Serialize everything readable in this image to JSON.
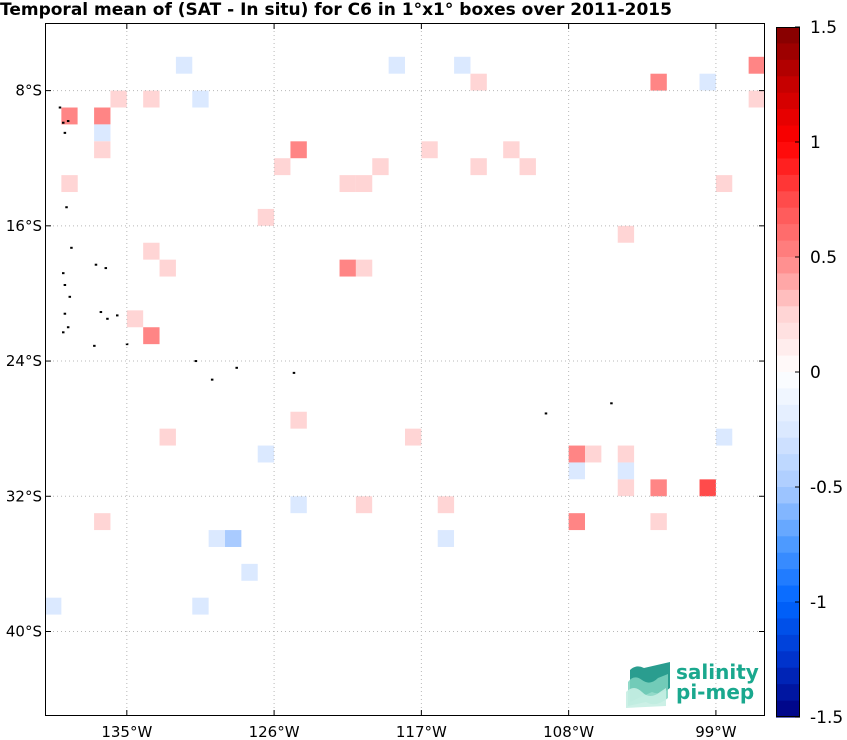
{
  "title": "Temporal mean of (SAT - In situ) for C6 in 1°x1° boxes over 2011-2015",
  "logo": {
    "line1": "salinity",
    "line2": "pi-mep"
  },
  "chart_data": {
    "type": "heatmap",
    "title": "Temporal mean of (SAT - In situ) for C6 in 1°x1° boxes over 2011-2015",
    "xlim": [
      -140,
      -96
    ],
    "ylim": [
      -45,
      -4
    ],
    "x_ticks": [
      -135,
      -126,
      -117,
      -108,
      -99
    ],
    "x_tick_labels": [
      "135°W",
      "126°W",
      "117°W",
      "108°W",
      "99°W"
    ],
    "y_ticks": [
      -8,
      -16,
      -24,
      -32,
      -40
    ],
    "y_tick_labels": [
      "8°S",
      "16°S",
      "24°S",
      "32°S",
      "40°S"
    ],
    "grid": true,
    "colorbar": {
      "range": [
        -1.5,
        1.5
      ],
      "ticks": [
        1.5,
        1,
        0.5,
        0,
        -0.5,
        -1,
        -1.5
      ],
      "tick_labels": [
        "1.5",
        "1",
        "0.5",
        "0",
        "-0.5",
        "-1",
        "-1.5"
      ],
      "colors": [
        "#7f0000",
        "#c60000",
        "#ff0000",
        "#ff4b4b",
        "#ff8585",
        "#ffd5d5",
        "#ffffff",
        "#dbe9ff",
        "#a9cbff",
        "#4d9aff",
        "#0066ff",
        "#0033cc",
        "#000080"
      ]
    },
    "cells": [
      {
        "lon": -121.5,
        "lat": -5.5,
        "value": -0.1
      },
      {
        "lon": -131.5,
        "lat": -6.5,
        "value": -0.15
      },
      {
        "lon": -118.5,
        "lat": -6.5,
        "value": -0.15
      },
      {
        "lon": -114.5,
        "lat": -6.5,
        "value": -0.15
      },
      {
        "lon": -97.5,
        "lat": -5.5,
        "value": -0.1
      },
      {
        "lon": -97.5,
        "lat": -6.5,
        "value": -0.1
      },
      {
        "lon": -96.5,
        "lat": -6.5,
        "value": 0.6
      },
      {
        "lon": -113.5,
        "lat": -7.5,
        "value": 0.3
      },
      {
        "lon": -102.5,
        "lat": -7.5,
        "value": 0.45
      },
      {
        "lon": -99.5,
        "lat": -7.5,
        "value": -0.3
      },
      {
        "lon": -136.5,
        "lat": -8.5,
        "value": -0.1
      },
      {
        "lon": -135.5,
        "lat": -8.5,
        "value": 0.2
      },
      {
        "lon": -133.5,
        "lat": -8.5,
        "value": 0.2
      },
      {
        "lon": -130.5,
        "lat": -8.5,
        "value": -0.15
      },
      {
        "lon": -124.5,
        "lat": -8.5,
        "value": -0.1
      },
      {
        "lon": -110.5,
        "lat": -8.5,
        "value": -0.1
      },
      {
        "lon": -99.5,
        "lat": -8.5,
        "value": -0.1
      },
      {
        "lon": -96.5,
        "lat": -8.5,
        "value": 0.2
      },
      {
        "lon": -138.5,
        "lat": -9.5,
        "value": 0.55
      },
      {
        "lon": -137.5,
        "lat": -9.5,
        "value": -0.1
      },
      {
        "lon": -136.5,
        "lat": -9.5,
        "value": 0.4
      },
      {
        "lon": -136.5,
        "lat": -10.5,
        "value": -0.15
      },
      {
        "lon": -136.5,
        "lat": -11.5,
        "value": 0.2
      },
      {
        "lon": -124.5,
        "lat": -11.5,
        "value": 0.4
      },
      {
        "lon": -116.5,
        "lat": -11.5,
        "value": 0.25
      },
      {
        "lon": -111.5,
        "lat": -11.5,
        "value": 0.25
      },
      {
        "lon": -125.5,
        "lat": -12.5,
        "value": 0.2
      },
      {
        "lon": -119.5,
        "lat": -12.5,
        "value": 0.2
      },
      {
        "lon": -113.5,
        "lat": -12.5,
        "value": 0.35
      },
      {
        "lon": -110.5,
        "lat": -12.5,
        "value": 0.2
      },
      {
        "lon": -138.5,
        "lat": -13.5,
        "value": 0.2
      },
      {
        "lon": -121.5,
        "lat": -13.5,
        "value": 0.2
      },
      {
        "lon": -120.5,
        "lat": -13.5,
        "value": 0.3
      },
      {
        "lon": -98.5,
        "lat": -13.5,
        "value": 0.2
      },
      {
        "lon": -126.5,
        "lat": -15.5,
        "value": 0.25
      },
      {
        "lon": -104.5,
        "lat": -16.5,
        "value": 0.2
      },
      {
        "lon": -133.5,
        "lat": -17.5,
        "value": 0.25
      },
      {
        "lon": -132.5,
        "lat": -18.5,
        "value": 0.25
      },
      {
        "lon": -121.5,
        "lat": -18.5,
        "value": 0.45
      },
      {
        "lon": -120.5,
        "lat": -18.5,
        "value": 0.25
      },
      {
        "lon": -134.5,
        "lat": -21.5,
        "value": 0.2
      },
      {
        "lon": -133.5,
        "lat": -22.5,
        "value": 0.4
      },
      {
        "lon": -124.5,
        "lat": -27.5,
        "value": 0.2
      },
      {
        "lon": -132.5,
        "lat": -28.5,
        "value": 0.25
      },
      {
        "lon": -117.5,
        "lat": -28.5,
        "value": 0.25
      },
      {
        "lon": -98.5,
        "lat": -28.5,
        "value": -0.15
      },
      {
        "lon": -126.5,
        "lat": -29.5,
        "value": -0.15
      },
      {
        "lon": -107.5,
        "lat": -29.5,
        "value": 0.45
      },
      {
        "lon": -106.5,
        "lat": -29.5,
        "value": 0.2
      },
      {
        "lon": -104.5,
        "lat": -29.5,
        "value": 0.2
      },
      {
        "lon": -107.5,
        "lat": -30.5,
        "value": -0.2
      },
      {
        "lon": -104.5,
        "lat": -30.5,
        "value": -0.2
      },
      {
        "lon": -112.5,
        "lat": -31.5,
        "value": -0.1
      },
      {
        "lon": -107.5,
        "lat": -31.5,
        "value": -0.1
      },
      {
        "lon": -106.5,
        "lat": -31.5,
        "value": -0.1
      },
      {
        "lon": -104.5,
        "lat": -31.5,
        "value": 0.2
      },
      {
        "lon": -102.5,
        "lat": -31.5,
        "value": 0.45
      },
      {
        "lon": -99.5,
        "lat": -31.5,
        "value": 0.85
      },
      {
        "lon": -124.5,
        "lat": -32.5,
        "value": -0.15
      },
      {
        "lon": -120.5,
        "lat": -32.5,
        "value": 0.2
      },
      {
        "lon": -119.5,
        "lat": -32.5,
        "value": -0.1
      },
      {
        "lon": -115.5,
        "lat": -32.5,
        "value": 0.25
      },
      {
        "lon": -105.5,
        "lat": -32.5,
        "value": -0.1
      },
      {
        "lon": -104.5,
        "lat": -32.5,
        "value": -0.1
      },
      {
        "lon": -103.5,
        "lat": -32.5,
        "value": -0.1
      },
      {
        "lon": -136.5,
        "lat": -33.5,
        "value": 0.2
      },
      {
        "lon": -130.5,
        "lat": -33.5,
        "value": -0.1
      },
      {
        "lon": -118.5,
        "lat": -33.5,
        "value": -0.1
      },
      {
        "lon": -107.5,
        "lat": -33.5,
        "value": 0.4
      },
      {
        "lon": -102.5,
        "lat": -33.5,
        "value": 0.2
      },
      {
        "lon": -129.5,
        "lat": -34.5,
        "value": -0.15
      },
      {
        "lon": -128.5,
        "lat": -34.5,
        "value": -0.4
      },
      {
        "lon": -115.5,
        "lat": -34.5,
        "value": -0.25
      },
      {
        "lon": -114.5,
        "lat": -34.5,
        "value": -0.1
      },
      {
        "lon": -127.5,
        "lat": -36.5,
        "value": -0.15
      },
      {
        "lon": -139.5,
        "lat": -38.5,
        "value": -0.15
      },
      {
        "lon": -130.5,
        "lat": -38.5,
        "value": -0.3
      }
    ],
    "land": [
      {
        "lon": -138.9,
        "lat": -9.9
      },
      {
        "lon": -138.6,
        "lat": -9.8
      },
      {
        "lon": -139.1,
        "lat": -9.0
      },
      {
        "lon": -138.8,
        "lat": -10.5
      },
      {
        "lon": -138.7,
        "lat": -14.9
      },
      {
        "lon": -138.4,
        "lat": -17.3
      },
      {
        "lon": -136.9,
        "lat": -18.3
      },
      {
        "lon": -136.3,
        "lat": -18.5
      },
      {
        "lon": -138.9,
        "lat": -18.8
      },
      {
        "lon": -138.8,
        "lat": -19.5
      },
      {
        "lon": -138.5,
        "lat": -20.2
      },
      {
        "lon": -138.8,
        "lat": -21.2
      },
      {
        "lon": -136.6,
        "lat": -21.1
      },
      {
        "lon": -136.2,
        "lat": -21.5
      },
      {
        "lon": -135.6,
        "lat": -21.3
      },
      {
        "lon": -138.6,
        "lat": -22.0
      },
      {
        "lon": -138.9,
        "lat": -22.3
      },
      {
        "lon": -137.0,
        "lat": -23.1
      },
      {
        "lon": -135.0,
        "lat": -23.0
      },
      {
        "lon": -130.8,
        "lat": -24.0
      },
      {
        "lon": -129.8,
        "lat": -25.1
      },
      {
        "lon": -128.3,
        "lat": -24.4
      },
      {
        "lon": -124.8,
        "lat": -24.7
      },
      {
        "lon": -109.4,
        "lat": -27.1
      },
      {
        "lon": -105.4,
        "lat": -26.5
      }
    ]
  }
}
